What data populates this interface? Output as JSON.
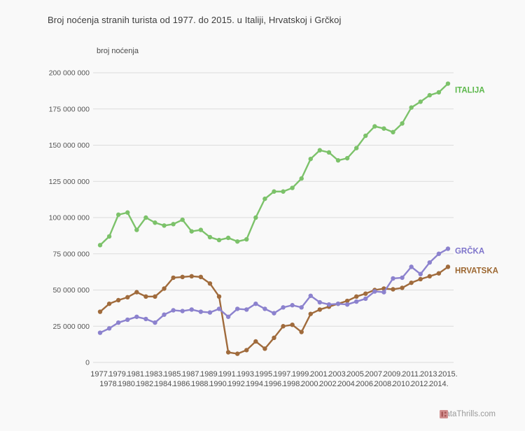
{
  "page": {
    "background_color": "#f9f9f9"
  },
  "header": {
    "title": "Broj noćenja stranih turista od 1977. do 2015. u Italiji, Hrvatskoj i Grčkoj"
  },
  "footer": {
    "brand": "DataThrills.com",
    "icon": "pixel-grid-logo-icon",
    "icon_color": "#d18f8f"
  },
  "chart_data": {
    "type": "line",
    "title": "Broj noćenja stranih turista od 1977. do 2015. u Italiji, Hrvatskoj i Grčkoj",
    "xlabel": "",
    "ylabel": "broj noćenja",
    "unit": "nights (values stored in millions)",
    "grid": true,
    "ylim": [
      0,
      200000000
    ],
    "y_tick_labels": [
      "0",
      "25 000 000",
      "50 000 000",
      "75 000 000",
      "100 000 000",
      "125 000 000",
      "150 000 000",
      "175 000 000",
      "200 000 000"
    ],
    "x_tick_suffix": ".",
    "legend_position": "end-of-line-labels-right",
    "x": [
      1977,
      1978,
      1979,
      1980,
      1981,
      1982,
      1983,
      1984,
      1985,
      1986,
      1987,
      1988,
      1989,
      1990,
      1991,
      1992,
      1993,
      1994,
      1995,
      1996,
      1997,
      1998,
      1999,
      2000,
      2001,
      2002,
      2003,
      2004,
      2005,
      2006,
      2007,
      2008,
      2009,
      2010,
      2011,
      2012,
      2013,
      2014,
      2015
    ],
    "series": [
      {
        "name": "ITALIJA",
        "color": "#7cc26a",
        "label_color": "#5cb84b",
        "values_millions": [
          81,
          87,
          102,
          103.5,
          91.5,
          100,
          96.5,
          94.5,
          95.5,
          98.5,
          90.5,
          91.5,
          86.5,
          84.5,
          86,
          83.5,
          85,
          100,
          113,
          118,
          118,
          120.5,
          127,
          140.5,
          146.5,
          145,
          139.5,
          141,
          148,
          156.5,
          163,
          161.5,
          159,
          165,
          176,
          180,
          184.5,
          186.5,
          192.5
        ]
      },
      {
        "name": "GRČKA",
        "color": "#8c82ce",
        "label_color": "#7e74cb",
        "values_millions": [
          20.5,
          23.5,
          27.5,
          29.5,
          31.5,
          30,
          27.5,
          33,
          36,
          35.5,
          36.5,
          35,
          34.5,
          37,
          31.5,
          37,
          36.5,
          40.5,
          37,
          34,
          38,
          39.5,
          38,
          46,
          41.5,
          40,
          40.5,
          40,
          42,
          44,
          49,
          48.5,
          58,
          58.5,
          66,
          61,
          69,
          75,
          78.5
        ]
      },
      {
        "name": "HRVATSKA",
        "color": "#a06b3c",
        "label_color": "#9c662f",
        "values_millions": [
          35,
          40.5,
          43,
          45,
          48.5,
          45.5,
          45.5,
          51,
          58.5,
          59,
          59.5,
          59,
          54.5,
          45.5,
          7,
          6,
          8.5,
          14.5,
          9.5,
          17,
          25,
          26,
          21,
          33.5,
          36.5,
          38.5,
          40.5,
          42.5,
          45.5,
          47.5,
          50,
          51,
          50.5,
          51.5,
          55,
          57.5,
          59.5,
          61.5,
          66
        ]
      }
    ]
  }
}
